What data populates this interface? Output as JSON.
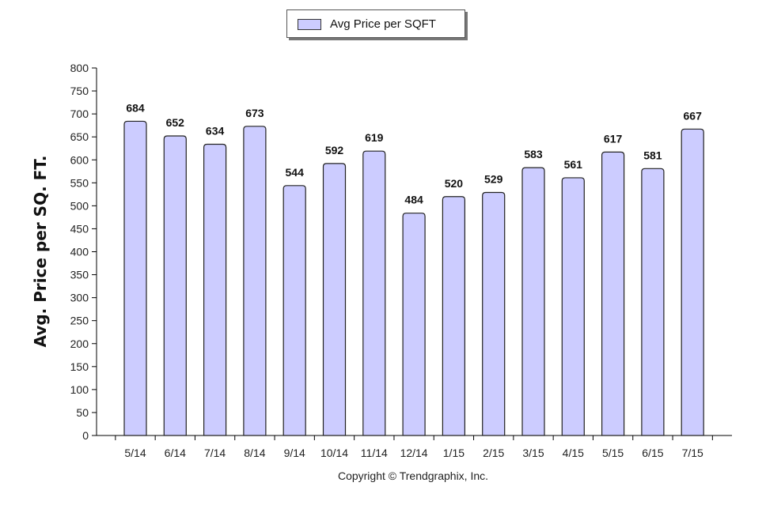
{
  "legend": {
    "label": "Avg Price per SQFT",
    "swatch_color": "#ccccff"
  },
  "copyright": "Copyright © Trendgraphix, Inc.",
  "chart_data": {
    "type": "bar",
    "categories": [
      "5/14",
      "6/14",
      "7/14",
      "8/14",
      "9/14",
      "10/14",
      "11/14",
      "12/14",
      "1/15",
      "2/15",
      "3/15",
      "4/15",
      "5/15",
      "6/15",
      "7/15"
    ],
    "series": [
      {
        "name": "Avg Price per SQFT",
        "values": [
          684,
          652,
          634,
          673,
          544,
          592,
          619,
          484,
          520,
          529,
          583,
          561,
          617,
          581,
          667
        ]
      }
    ],
    "ylabel": "Avg. Price per SQ. FT.",
    "xlabel": "",
    "ylim": [
      0,
      800
    ],
    "yticks": [
      0,
      50,
      100,
      150,
      200,
      250,
      300,
      350,
      400,
      450,
      500,
      550,
      600,
      650,
      700,
      750,
      800
    ],
    "bar_color": "#ccccff",
    "bar_edge_color": "#222222",
    "grid": false,
    "data_labels": true,
    "legend_position": "top-center"
  }
}
